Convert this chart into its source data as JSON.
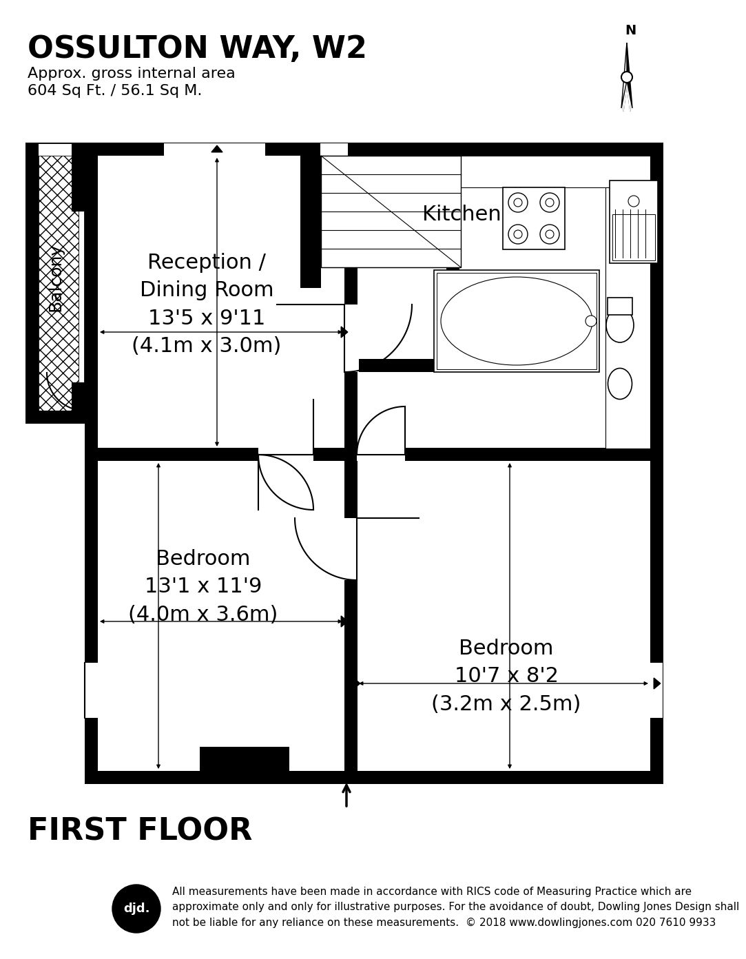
{
  "title": "OSSULTON WAY, W2",
  "subtitle1": "Approx. gross internal area",
  "subtitle2": "604 Sq Ft. / 56.1 Sq M.",
  "floor_label": "FIRST FLOOR",
  "bg_color": "#ffffff",
  "wall_color": "#000000",
  "room_bg": "#ffffff",
  "disclaimer": "All measurements have been made in accordance with RICS code of Measuring Practice which are\napproximate only and only for illustrative purposes. For the avoidance of doubt, Dowling Jones Design shall\nnot be liable for any reliance on these measurements.  © 2018 www.dowlingjones.com 020 7610 9933",
  "reception_label": "Reception /\nDining Room\n13’5 x 9’11\n(4.1m x 3.0m)",
  "kitchen_label": "Kitchen",
  "bedroom_l_label": "Bedroom\n13’1 x 11’9\n(4.0m x 3.6m)",
  "bedroom_r_label": "Bedroom\n10’7 x 8’2\n(3.2m x 2.5m)",
  "balcony_label": "Balcony"
}
